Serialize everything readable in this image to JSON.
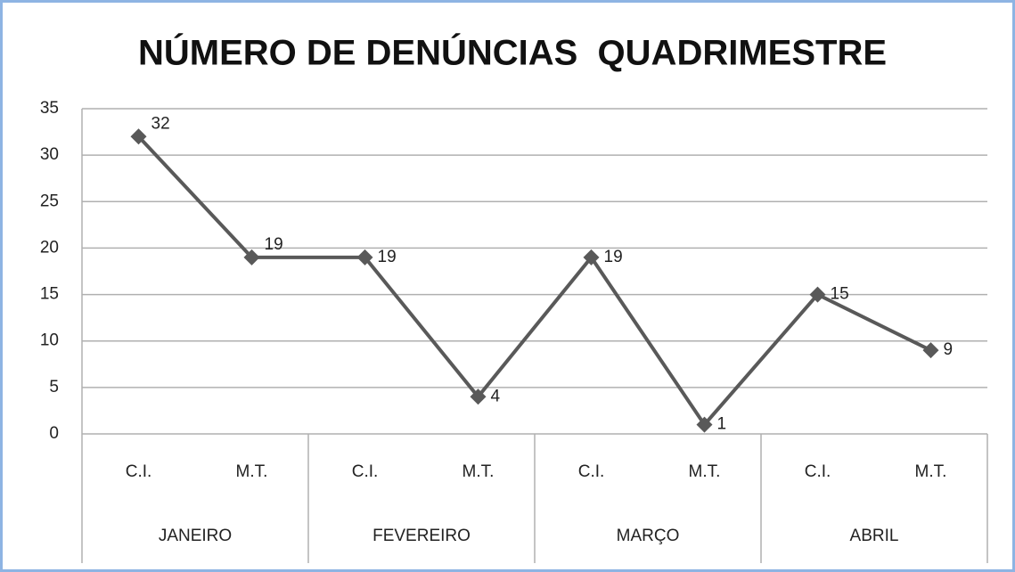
{
  "chart_data": {
    "type": "line",
    "title": "NÚMERO DE DENÚNCIAS  QUADRIMESTRE",
    "categories": [
      "C.I.",
      "M.T.",
      "C.I.",
      "M.T.",
      "C.I.",
      "M.T.",
      "C.I.",
      "M.T."
    ],
    "groups": [
      "JANEIRO",
      "FEVEREIRO",
      "MARÇO",
      "ABRIL"
    ],
    "values": [
      32,
      19,
      19,
      4,
      19,
      1,
      15,
      9
    ],
    "color": "#595959",
    "ylim": [
      0,
      35
    ],
    "yticks": [
      0,
      5,
      10,
      15,
      20,
      25,
      30,
      35
    ],
    "grid": true
  }
}
